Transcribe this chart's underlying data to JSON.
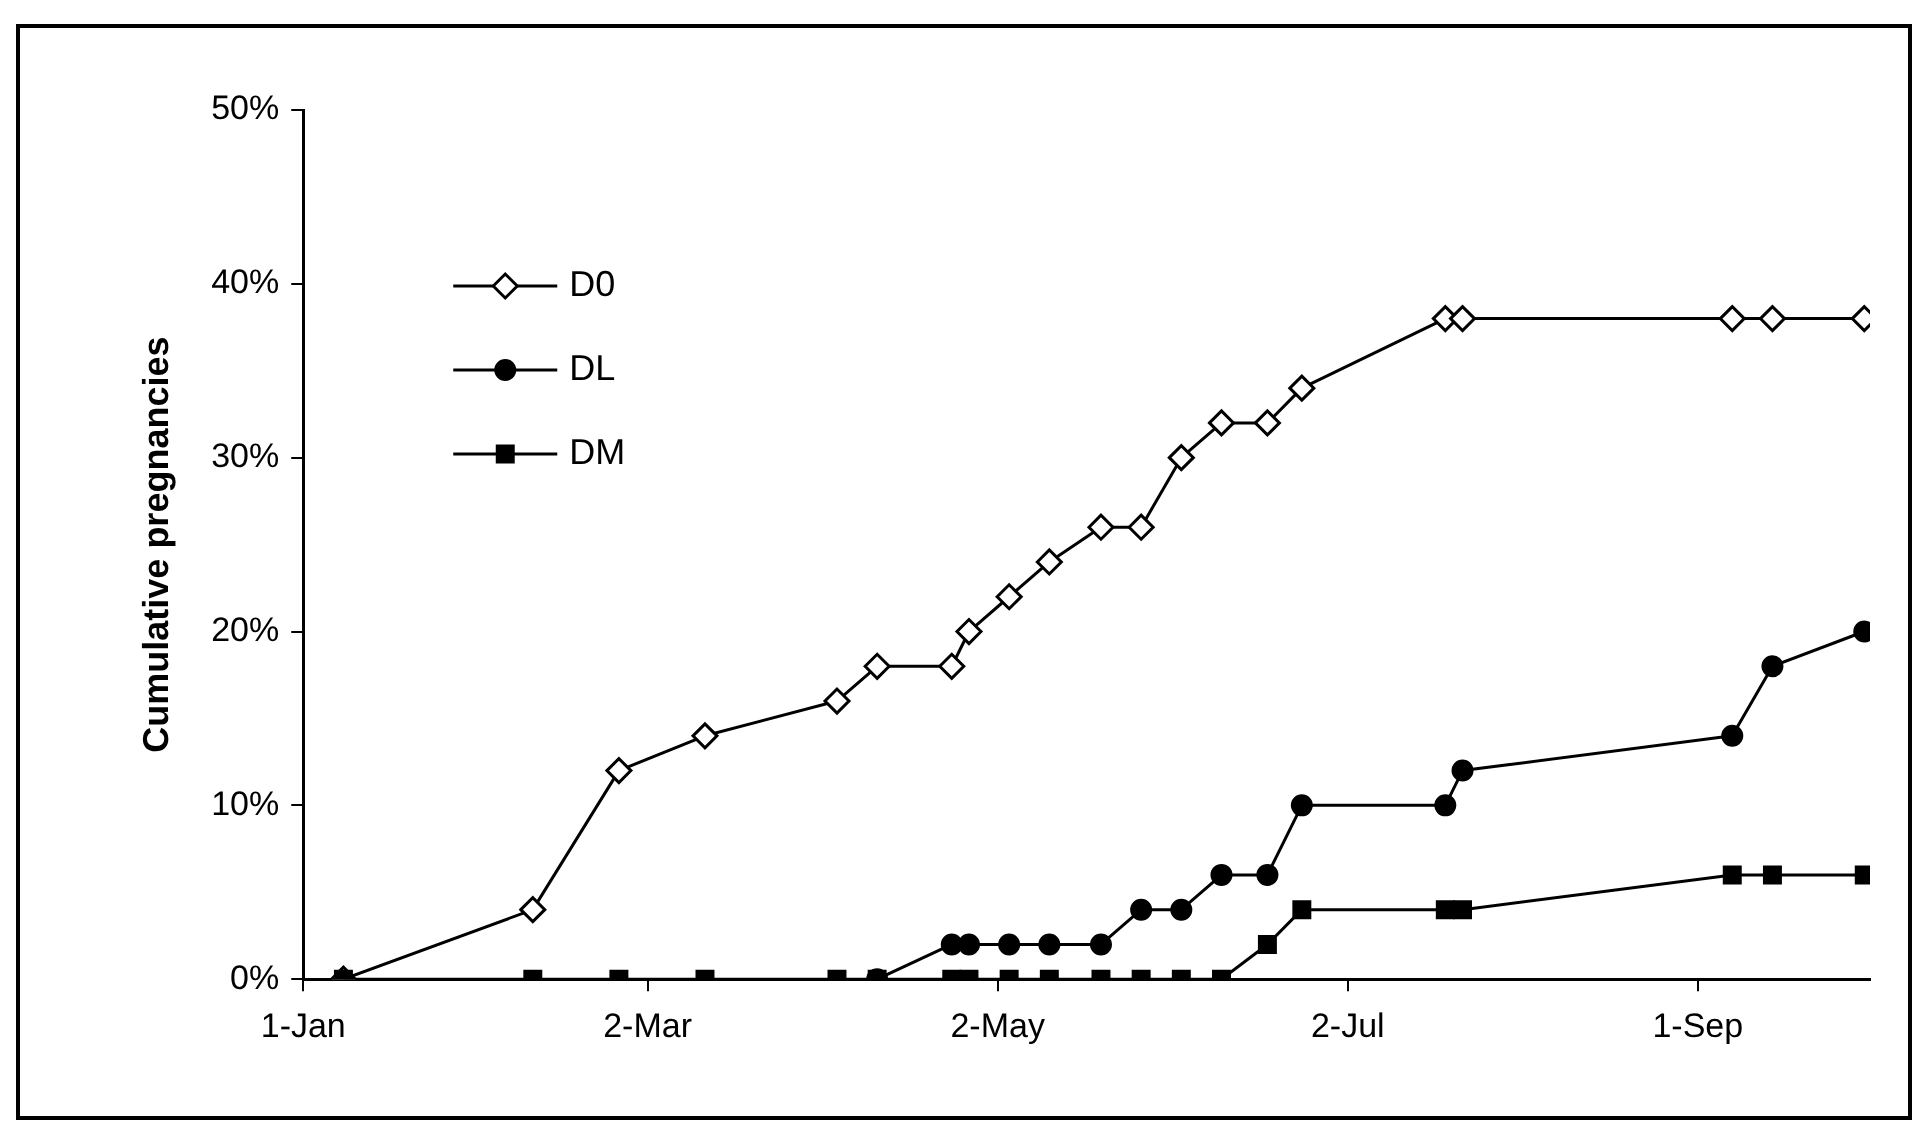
{
  "chart_data": {
    "type": "line",
    "ylabel": "Cumulative pregnancies",
    "x": [
      "--01-08",
      "--02-10",
      "--02-25",
      "--03-12",
      "--04-04",
      "--04-11",
      "--04-24",
      "--04-27",
      "--05-04",
      "--05-11",
      "--05-20",
      "--05-27",
      "--06-03",
      "--06-10",
      "--06-18",
      "--06-24",
      "--07-19",
      "--07-22",
      "--09-07",
      "--09-14",
      "--09-30"
    ],
    "series": [
      {
        "name": "D0",
        "color": "#000000",
        "marker": "diamond",
        "values": [
          0,
          4,
          12,
          14,
          16,
          18,
          18,
          20,
          22,
          24,
          26,
          26,
          30,
          32,
          32,
          34,
          38,
          38,
          38,
          38,
          38
        ]
      },
      {
        "name": "DL",
        "color": "#000000",
        "marker": "circle",
        "values": [
          null,
          null,
          null,
          null,
          null,
          0,
          2,
          2,
          2,
          2,
          2,
          4,
          4,
          6,
          6,
          10,
          10,
          12,
          14,
          18,
          20
        ]
      },
      {
        "name": "DM",
        "color": "#000000",
        "marker": "square",
        "values": [
          0,
          0,
          0,
          0,
          0,
          0,
          0,
          0,
          0,
          0,
          0,
          0,
          0,
          0,
          2,
          4,
          4,
          4,
          6,
          6,
          6
        ]
      }
    ],
    "xlim": [
      "--01-01",
      "--10-01"
    ],
    "xticks": [
      {
        "value": "--01-01",
        "label": "1-Jan"
      },
      {
        "value": "--03-02",
        "label": "2-Mar"
      },
      {
        "value": "--05-02",
        "label": "2-May"
      },
      {
        "value": "--07-02",
        "label": "2-Jul"
      },
      {
        "value": "--09-01",
        "label": "1-Sep"
      }
    ],
    "ylim": [
      0,
      50
    ],
    "yticks": [
      {
        "value": 0,
        "label": "0%"
      },
      {
        "value": 10,
        "label": "10%"
      },
      {
        "value": 20,
        "label": "20%"
      },
      {
        "value": 30,
        "label": "30%"
      },
      {
        "value": 40,
        "label": "40%"
      },
      {
        "value": 50,
        "label": "50%"
      }
    ],
    "grid": false,
    "legend": "top left",
    "line_style": "solid"
  }
}
